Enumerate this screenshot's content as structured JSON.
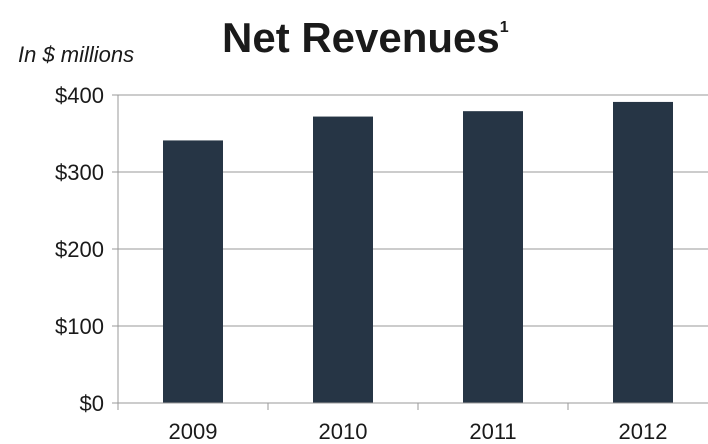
{
  "chart_data": {
    "type": "bar",
    "title": "Net Revenues",
    "title_superscript": "1",
    "subtitle": "In $ millions",
    "categories": [
      "2009",
      "2010",
      "2011",
      "2012"
    ],
    "values": [
      341,
      372,
      379,
      391
    ],
    "ylim": [
      0,
      400
    ],
    "yticks": [
      0,
      100,
      200,
      300,
      400
    ],
    "ytick_labels": [
      "$0",
      "$100",
      "$200",
      "$300",
      "$400"
    ],
    "xlabel": "",
    "ylabel": "",
    "grid": true,
    "bar_color": "#263545",
    "grid_color": "#999999"
  }
}
